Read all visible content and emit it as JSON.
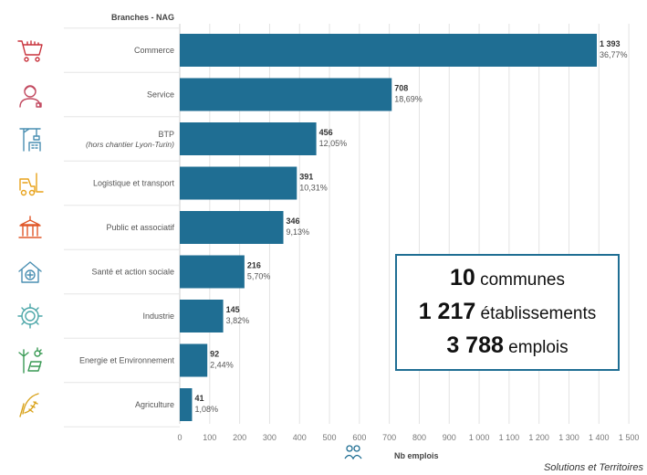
{
  "header": {
    "column_label": "Branches - NAG"
  },
  "chart_data": {
    "type": "bar",
    "orientation": "horizontal",
    "categories": [
      {
        "label": "Commerce",
        "sublabel": ""
      },
      {
        "label": "Service",
        "sublabel": ""
      },
      {
        "label": "BTP",
        "sublabel": "(hors chantier Lyon-Turin)"
      },
      {
        "label": "Logistique et transport",
        "sublabel": ""
      },
      {
        "label": "Public et associatif",
        "sublabel": ""
      },
      {
        "label": "Santé et action sociale",
        "sublabel": ""
      },
      {
        "label": "Industrie",
        "sublabel": ""
      },
      {
        "label": "Energie et Environnement",
        "sublabel": ""
      },
      {
        "label": "Agriculture",
        "sublabel": ""
      }
    ],
    "values": [
      1393,
      708,
      456,
      391,
      346,
      216,
      145,
      92,
      41
    ],
    "value_labels": [
      "1 393",
      "708",
      "456",
      "391",
      "346",
      "216",
      "145",
      "92",
      "41"
    ],
    "percent_labels": [
      "36,77%",
      "18,69%",
      "12,05%",
      "10,31%",
      "9,13%",
      "5,70%",
      "3,82%",
      "2,44%",
      "1,08%"
    ],
    "xlim": [
      0,
      1550
    ],
    "xticks": [
      0,
      100,
      200,
      300,
      400,
      500,
      600,
      700,
      800,
      900,
      1000,
      1100,
      1200,
      1300,
      1400,
      1500
    ],
    "xtick_labels": [
      "0",
      "100",
      "200",
      "300",
      "400",
      "500",
      "600",
      "700",
      "800",
      "900",
      "1 000",
      "1 100",
      "1 200",
      "1 300",
      "1 400",
      "1 500"
    ],
    "xlabel": "Nb emplois",
    "grid": true,
    "bar_color": "#1f6e93"
  },
  "icons": [
    "shopping-cart-icon",
    "service-person-icon",
    "construction-crane-icon",
    "forklift-icon",
    "public-building-icon",
    "health-house-icon",
    "industry-gear-icon",
    "wind-solar-energy-icon",
    "corn-icon"
  ],
  "kpis": [
    {
      "value": "10",
      "label": "communes"
    },
    {
      "value": "1 217",
      "label": "établissements"
    },
    {
      "value": "3 788",
      "label": "emplois"
    }
  ],
  "footer": {
    "source": "Solutions et Territoires"
  }
}
